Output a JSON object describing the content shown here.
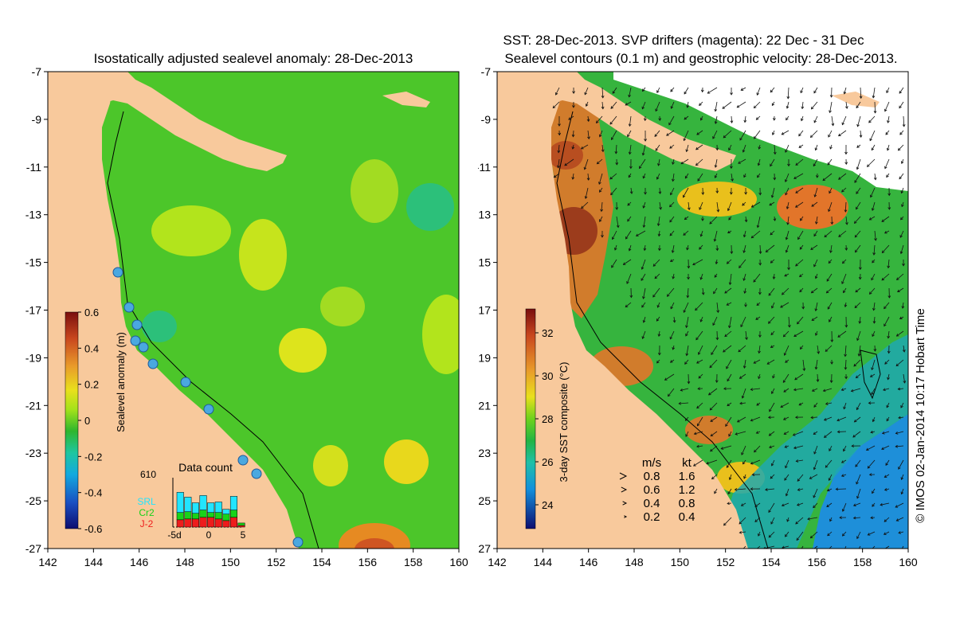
{
  "left_panel": {
    "title": "Isostatically adjusted sealevel anomaly: 28-Dec-2013",
    "y_ticks": [
      "-7",
      "-9",
      "-11",
      "-13",
      "-15",
      "-17",
      "-19",
      "-21",
      "-23",
      "-25",
      "-27"
    ],
    "x_ticks": [
      "142",
      "144",
      "146",
      "148",
      "150",
      "152",
      "154",
      "156",
      "158",
      "160"
    ],
    "colorbar": {
      "label": "Sealevel anomaly (m)",
      "ticks": [
        "0.6",
        "0.4",
        "0.2",
        "0",
        "-0.2",
        "-0.4",
        "-0.6"
      ],
      "range": [
        -0.6,
        0.6
      ]
    },
    "inset": {
      "title": "Data count",
      "max_label": "610",
      "x_labels": [
        "-5d",
        "0",
        "5"
      ],
      "legend": [
        {
          "label": "SRL",
          "color": "#22e5ff"
        },
        {
          "label": "Cr2",
          "color": "#19d219"
        },
        {
          "label": "J-2",
          "color": "#ee1c1c"
        }
      ],
      "days": [
        {
          "day": -5,
          "srl": 250,
          "cr2": 90,
          "j2": 90
        },
        {
          "day": -4,
          "srl": 180,
          "cr2": 90,
          "j2": 100
        },
        {
          "day": -3,
          "srl": 130,
          "cr2": 70,
          "j2": 100
        },
        {
          "day": -2,
          "srl": 180,
          "cr2": 90,
          "j2": 120
        },
        {
          "day": -1,
          "srl": 120,
          "cr2": 60,
          "j2": 120
        },
        {
          "day": 0,
          "srl": 130,
          "cr2": 80,
          "j2": 100
        },
        {
          "day": 1,
          "srl": 60,
          "cr2": 80,
          "j2": 80
        },
        {
          "day": 2,
          "srl": 170,
          "cr2": 90,
          "j2": 120
        },
        {
          "day": 3,
          "srl": 0,
          "cr2": 30,
          "j2": 20
        }
      ]
    }
  },
  "right_panel": {
    "title_line1": "SST: 28-Dec-2013. SVP drifters (magenta): 22 Dec - 31 Dec",
    "title_line2": "Sealevel contours (0.1 m) and geostrophic velocity: 28-Dec-2013.",
    "y_ticks": [
      "-7",
      "-9",
      "-11",
      "-13",
      "-15",
      "-17",
      "-19",
      "-21",
      "-23",
      "-25",
      "-27"
    ],
    "x_ticks": [
      "142",
      "144",
      "146",
      "148",
      "150",
      "152",
      "154",
      "156",
      "158",
      "160"
    ],
    "colorbar": {
      "label": "3-day SST composite (°C)",
      "ticks": [
        "32",
        "30",
        "28",
        "26",
        "24"
      ],
      "range": [
        23,
        33.5
      ]
    },
    "velocity_legend": {
      "header_ms": "m/s",
      "header_kt": "kt",
      "rows": [
        {
          "ms": "0.8",
          "kt": "1.6"
        },
        {
          "ms": "0.6",
          "kt": "1.2"
        },
        {
          "ms": "0.4",
          "kt": "0.8"
        },
        {
          "ms": "0.2",
          "kt": "0.4"
        }
      ]
    }
  },
  "credit": "© IMOS 02-Jan-2014 10:17 Hobart Time",
  "colors": {
    "land": "#f8c99c",
    "sla_base": "#4cc62a",
    "sst_base": "#36b43e",
    "sst_warm": "#e2752a",
    "sst_cool": "#1e8fd9",
    "tide_gauge": "#4aa8e0"
  },
  "map": {
    "lon_range": [
      142,
      160
    ],
    "lat_range": [
      -7,
      -27
    ]
  }
}
